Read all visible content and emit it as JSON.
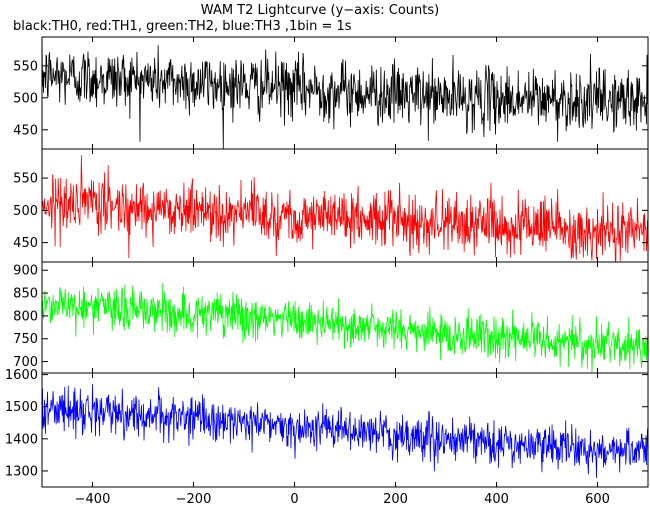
{
  "chart_data": {
    "type": "line",
    "title": "WAM T2 Lightcurve (y−axis: Counts)",
    "subtitle": "black:TH0, red:TH1, green:TH2, blue:TH3 ,1bin = 1s",
    "xlabel": "",
    "xlim": [
      -500,
      700
    ],
    "x_ticks": [
      -400,
      -200,
      0,
      200,
      400,
      600
    ],
    "x_tick_labels": [
      "−400",
      "−200",
      "0",
      "200",
      "400",
      "600"
    ],
    "x_step": 1,
    "grid": false,
    "panels": [
      {
        "name": "TH0",
        "color": "#000000",
        "ylim": [
          420,
          595
        ],
        "y_ticks": [
          450,
          500,
          550
        ],
        "trend": {
          "x": [
            -500,
            -300,
            0,
            300,
            700
          ],
          "y": [
            535,
            528,
            515,
            500,
            495
          ]
        },
        "noise_sd": 24
      },
      {
        "name": "TH1",
        "color": "#ff0000",
        "ylim": [
          420,
          595
        ],
        "y_ticks": [
          450,
          500,
          550
        ],
        "trend": {
          "x": [
            -500,
            -300,
            0,
            300,
            700
          ],
          "y": [
            512,
            505,
            492,
            482,
            468
          ]
        },
        "noise_sd": 22
      },
      {
        "name": "TH2",
        "color": "#00ff00",
        "ylim": [
          675,
          918
        ],
        "y_ticks": [
          700,
          750,
          800,
          850,
          900
        ],
        "trend": {
          "x": [
            -500,
            -300,
            0,
            300,
            700
          ],
          "y": [
            828,
            812,
            790,
            760,
            735
          ]
        },
        "noise_sd": 24
      },
      {
        "name": "TH3",
        "color": "#0000ff",
        "ylim": [
          1250,
          1605
        ],
        "y_ticks": [
          1300,
          1400,
          1500,
          1600
        ],
        "trend": {
          "x": [
            -500,
            -300,
            0,
            300,
            700
          ],
          "y": [
            1495,
            1475,
            1440,
            1395,
            1360
          ]
        },
        "noise_sd": 33
      }
    ]
  }
}
